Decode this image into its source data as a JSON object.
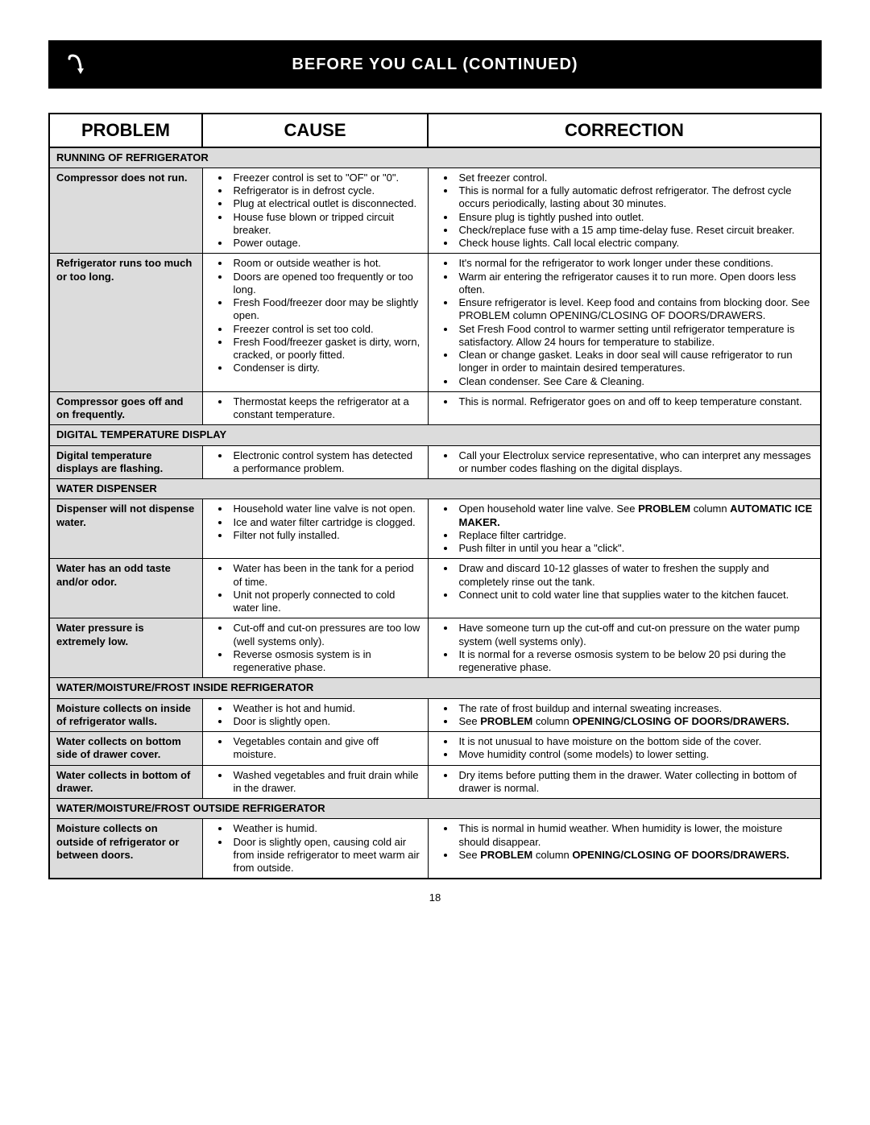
{
  "header": {
    "title": "BEFORE YOU CALL (CONTINUED)",
    "icon_name": "hook-arrow-icon"
  },
  "colors": {
    "header_bg": "#000000",
    "header_fg": "#ffffff",
    "section_bg": "#dcdcdc",
    "border": "#000000",
    "page_bg": "#ffffff"
  },
  "columns": {
    "problem": "PROBLEM",
    "cause": "CAUSE",
    "correction": "CORRECTION"
  },
  "page_number": "18",
  "sections": [
    {
      "title": "RUNNING OF REFRIGERATOR",
      "rows": [
        {
          "problem": "Compressor does not run.",
          "causes": [
            "Freezer control is set to \"OF\" or \"0\".",
            "Refrigerator is in defrost cycle.",
            "Plug at electrical outlet is disconnected.",
            "House fuse blown or tripped circuit breaker.",
            "Power outage."
          ],
          "corrections": [
            "Set freezer control.",
            "This is normal for a fully automatic defrost refrigerator. The defrost cycle occurs periodically, lasting about 30 minutes.",
            "Ensure plug is tightly pushed into outlet.",
            "Check/replace fuse with a 15 amp time-delay fuse.  Reset circuit breaker.",
            "Check house lights.  Call local electric company."
          ]
        },
        {
          "problem": "Refrigerator runs too much or too long.",
          "causes": [
            "Room or outside weather is hot.",
            "Doors are opened too frequently or too long.",
            "Fresh Food/freezer door may be slightly open.",
            "Freezer control is set too cold.",
            "Fresh Food/freezer gasket is dirty, worn, cracked, or poorly fitted.",
            "Condenser is dirty."
          ],
          "corrections": [
            "It's normal for the refrigerator to work longer under these conditions.",
            "Warm air entering the refrigerator causes it to run more. Open doors less often.",
            "Ensure refrigerator is level.  Keep food and contains from blocking door.  See PROBLEM column OPENING/CLOSING OF DOORS/DRAWERS.",
            "Set Fresh Food control to warmer setting until refrigerator temperature is satisfactory.  Allow 24 hours for temperature to stabilize.",
            "Clean or change gasket.  Leaks in door seal will cause refrigerator to run longer in order to maintain desired temperatures.",
            "Clean condenser.  See Care & Cleaning."
          ]
        },
        {
          "problem": "Compressor goes off and on frequently.",
          "causes": [
            "Thermostat keeps the refrigerator at a constant temperature."
          ],
          "corrections": [
            "This is normal.  Refrigerator goes on and off to keep temperature constant."
          ]
        }
      ]
    },
    {
      "title": "DIGITAL TEMPERATURE DISPLAY",
      "rows": [
        {
          "problem": "Digital temperature displays are flashing.",
          "causes": [
            "Electronic control system has detected a performance problem."
          ],
          "corrections": [
            "Call your Electrolux service representative, who can interpret any messages or number codes flashing on the digital displays."
          ]
        }
      ]
    },
    {
      "title": "WATER DISPENSER",
      "rows": [
        {
          "problem": "Dispenser will not dispense water.",
          "causes": [
            "Household water line valve is not open.",
            "Ice and water filter cartridge is clogged.",
            "Filter not fully installed."
          ],
          "corrections_html": "<li>Open household water line valve.  See <b>PROBLEM</b> column <b>AUTOMATIC ICE MAKER.</b></li><li>Replace filter cartridge.</li><li>Push filter in until you hear a \"click\".</li>"
        },
        {
          "problem": "Water has an odd taste and/or odor.",
          "causes": [
            "Water has been in the tank for a period of time.",
            "Unit not properly connected to cold water line."
          ],
          "corrections": [
            "Draw and discard 10-12 glasses of water to freshen the supply and completely rinse out the tank.",
            "Connect unit to cold water line that supplies water to the kitchen faucet."
          ]
        },
        {
          "problem": "Water pressure is extremely low.",
          "causes": [
            "Cut-off and cut-on pressures are too low (well systems only).",
            "Reverse osmosis system is in regenerative phase."
          ],
          "corrections": [
            "Have someone turn up the cut-off and cut-on pressure on the water pump system (well systems only).",
            "It is normal for a reverse osmosis system to be below 20 psi during the regenerative phase."
          ]
        }
      ]
    },
    {
      "title": "WATER/MOISTURE/FROST INSIDE REFRIGERATOR",
      "rows": [
        {
          "problem": "Moisture collects on inside of refrigerator walls.",
          "causes": [
            "Weather is hot and humid.",
            "Door is slightly open."
          ],
          "corrections_html": "<li>The rate of frost buildup and internal sweating increases.</li><li>See <b>PROBLEM</b> column <b>OPENING/CLOSING OF DOORS/DRAWERS.</b></li>"
        },
        {
          "problem": "Water collects on bottom side of drawer cover.",
          "causes": [
            "Vegetables contain and give off moisture."
          ],
          "corrections": [
            "It is not unusual to have moisture on the bottom side of the cover.",
            "Move humidity control (some models) to lower setting."
          ]
        },
        {
          "problem": "Water collects in bottom of drawer.",
          "causes": [
            "Washed vegetables and fruit drain while in the drawer."
          ],
          "corrections": [
            "Dry items before putting them in the drawer.  Water collecting in bottom of drawer is normal."
          ]
        }
      ]
    },
    {
      "title": "WATER/MOISTURE/FROST OUTSIDE REFRIGERATOR",
      "rows": [
        {
          "problem": "Moisture collects on outside of refrigerator or between doors.",
          "causes": [
            "Weather is humid.",
            "Door is slightly open, causing cold air from inside refrigerator to meet warm air from outside."
          ],
          "corrections_html": "<li>This is normal in humid weather.  When humidity is lower, the moisture should disappear.</li><li>See <b>PROBLEM</b> column <b>OPENING/CLOSING OF DOORS/DRAWERS.</b></li>"
        }
      ]
    }
  ]
}
